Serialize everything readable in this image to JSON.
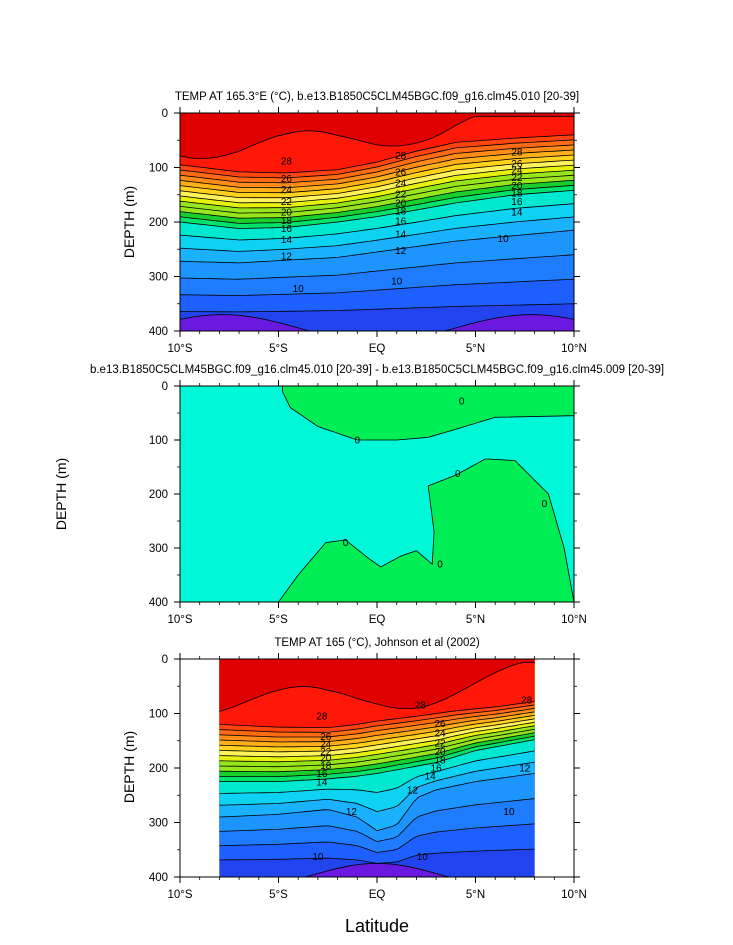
{
  "chart_data": [
    {
      "type": "contour",
      "title": "TEMP AT 165.3°E (°C), b.e13.B1850C5CLM45BGC.f09_g16.clm45.010 [20-39]",
      "ylabel": "DEPTH (m)",
      "xlabel": "",
      "x_ticks": [
        "10°S",
        "5°S",
        "EQ",
        "5°N",
        "10°N"
      ],
      "y_ticks": [
        "0",
        "100",
        "200",
        "300",
        "400"
      ],
      "xlim": [
        -10,
        10
      ],
      "ylim": [
        400,
        0
      ],
      "y_reversed": true,
      "contour_interval": 1,
      "contour_labels": [
        {
          "x": -4.6,
          "y": 88,
          "label": "28"
        },
        {
          "x": 1.2,
          "y": 78,
          "label": "28"
        },
        {
          "x": 7.1,
          "y": 72,
          "label": "28"
        },
        {
          "x": -4.6,
          "y": 120,
          "label": "26"
        },
        {
          "x": 1.2,
          "y": 108,
          "label": "26"
        },
        {
          "x": 7.1,
          "y": 93,
          "label": "26"
        },
        {
          "x": -4.6,
          "y": 140,
          "label": "24"
        },
        {
          "x": 1.2,
          "y": 128,
          "label": "24"
        },
        {
          "x": 7.1,
          "y": 105,
          "label": "24"
        },
        {
          "x": -4.6,
          "y": 162,
          "label": "22"
        },
        {
          "x": 1.2,
          "y": 149,
          "label": "22"
        },
        {
          "x": 7.1,
          "y": 118,
          "label": "22"
        },
        {
          "x": -4.6,
          "y": 182,
          "label": "20"
        },
        {
          "x": 1.2,
          "y": 165,
          "label": "20"
        },
        {
          "x": 7.1,
          "y": 133,
          "label": "20"
        },
        {
          "x": -4.6,
          "y": 197,
          "label": "18"
        },
        {
          "x": 1.2,
          "y": 180,
          "label": "18"
        },
        {
          "x": 7.1,
          "y": 147,
          "label": "18"
        },
        {
          "x": -4.6,
          "y": 212,
          "label": "16"
        },
        {
          "x": 1.2,
          "y": 198,
          "label": "16"
        },
        {
          "x": 7.1,
          "y": 162,
          "label": "16"
        },
        {
          "x": -4.6,
          "y": 232,
          "label": "14"
        },
        {
          "x": 1.2,
          "y": 222,
          "label": "14"
        },
        {
          "x": 7.1,
          "y": 182,
          "label": "14"
        },
        {
          "x": -4.6,
          "y": 262,
          "label": "12"
        },
        {
          "x": 1.2,
          "y": 252,
          "label": "12"
        },
        {
          "x": 6.4,
          "y": 230,
          "label": "10"
        },
        {
          "x": -4.0,
          "y": 322,
          "label": "10"
        },
        {
          "x": 1.0,
          "y": 308,
          "label": "10"
        }
      ]
    },
    {
      "type": "contour",
      "title": "b.e13.B1850C5CLM45BGC.f09_g16.clm45.010 [20-39] - b.e13.B1850C5CLM45BGC.f09_g16.clm45.009 [20-39]",
      "ylabel": "DEPTH (m)",
      "xlabel": "",
      "x_ticks": [
        "10°S",
        "5°S",
        "EQ",
        "5°N",
        "10°N"
      ],
      "y_ticks": [
        "0",
        "100",
        "200",
        "300",
        "400"
      ],
      "xlim": [
        -10,
        10
      ],
      "ylim": [
        400,
        0
      ],
      "y_reversed": true,
      "colors": {
        "negative": "#00f8d8",
        "positive": "#00ee55"
      },
      "contour_labels": [
        {
          "x": 4.3,
          "y": 28,
          "label": "0"
        },
        {
          "x": -1.0,
          "y": 100,
          "label": "0"
        },
        {
          "x": 4.1,
          "y": 162,
          "label": "0"
        },
        {
          "x": 8.5,
          "y": 218,
          "label": "0"
        },
        {
          "x": -1.6,
          "y": 290,
          "label": "0"
        },
        {
          "x": 3.2,
          "y": 330,
          "label": "0"
        }
      ]
    },
    {
      "type": "contour",
      "title": "TEMP AT 165 (°C), Johnson et al (2002)",
      "ylabel": "DEPTH (m)",
      "xlabel": "Latitude",
      "x_ticks": [
        "10°S",
        "5°S",
        "EQ",
        "5°N",
        "10°N"
      ],
      "y_ticks": [
        "0",
        "100",
        "200",
        "300",
        "400"
      ],
      "xlim": [
        -10,
        10
      ],
      "ylim": [
        400,
        0
      ],
      "data_xlim": [
        -8,
        8
      ],
      "y_reversed": true,
      "contour_interval": 1,
      "contour_labels": [
        {
          "x": -2.8,
          "y": 105,
          "label": "28"
        },
        {
          "x": 2.2,
          "y": 84,
          "label": "28"
        },
        {
          "x": 7.6,
          "y": 75,
          "label": "28"
        },
        {
          "x": -2.6,
          "y": 142,
          "label": "26"
        },
        {
          "x": 3.2,
          "y": 118,
          "label": "26"
        },
        {
          "x": -2.6,
          "y": 156,
          "label": "24"
        },
        {
          "x": 3.2,
          "y": 136,
          "label": "24"
        },
        {
          "x": -2.6,
          "y": 170,
          "label": "22"
        },
        {
          "x": 3.2,
          "y": 154,
          "label": "22"
        },
        {
          "x": -2.6,
          "y": 182,
          "label": "20"
        },
        {
          "x": 3.2,
          "y": 170,
          "label": "20"
        },
        {
          "x": -2.6,
          "y": 195,
          "label": "18"
        },
        {
          "x": 3.2,
          "y": 185,
          "label": "18"
        },
        {
          "x": -2.8,
          "y": 210,
          "label": "16"
        },
        {
          "x": 3.0,
          "y": 200,
          "label": "16"
        },
        {
          "x": -2.8,
          "y": 226,
          "label": "14"
        },
        {
          "x": 2.7,
          "y": 215,
          "label": "14"
        },
        {
          "x": -1.3,
          "y": 280,
          "label": "12"
        },
        {
          "x": 1.8,
          "y": 240,
          "label": "12"
        },
        {
          "x": 7.5,
          "y": 200,
          "label": "12"
        },
        {
          "x": -3.0,
          "y": 362,
          "label": "10"
        },
        {
          "x": 2.3,
          "y": 362,
          "label": "10"
        },
        {
          "x": 6.7,
          "y": 280,
          "label": "10"
        }
      ]
    }
  ]
}
